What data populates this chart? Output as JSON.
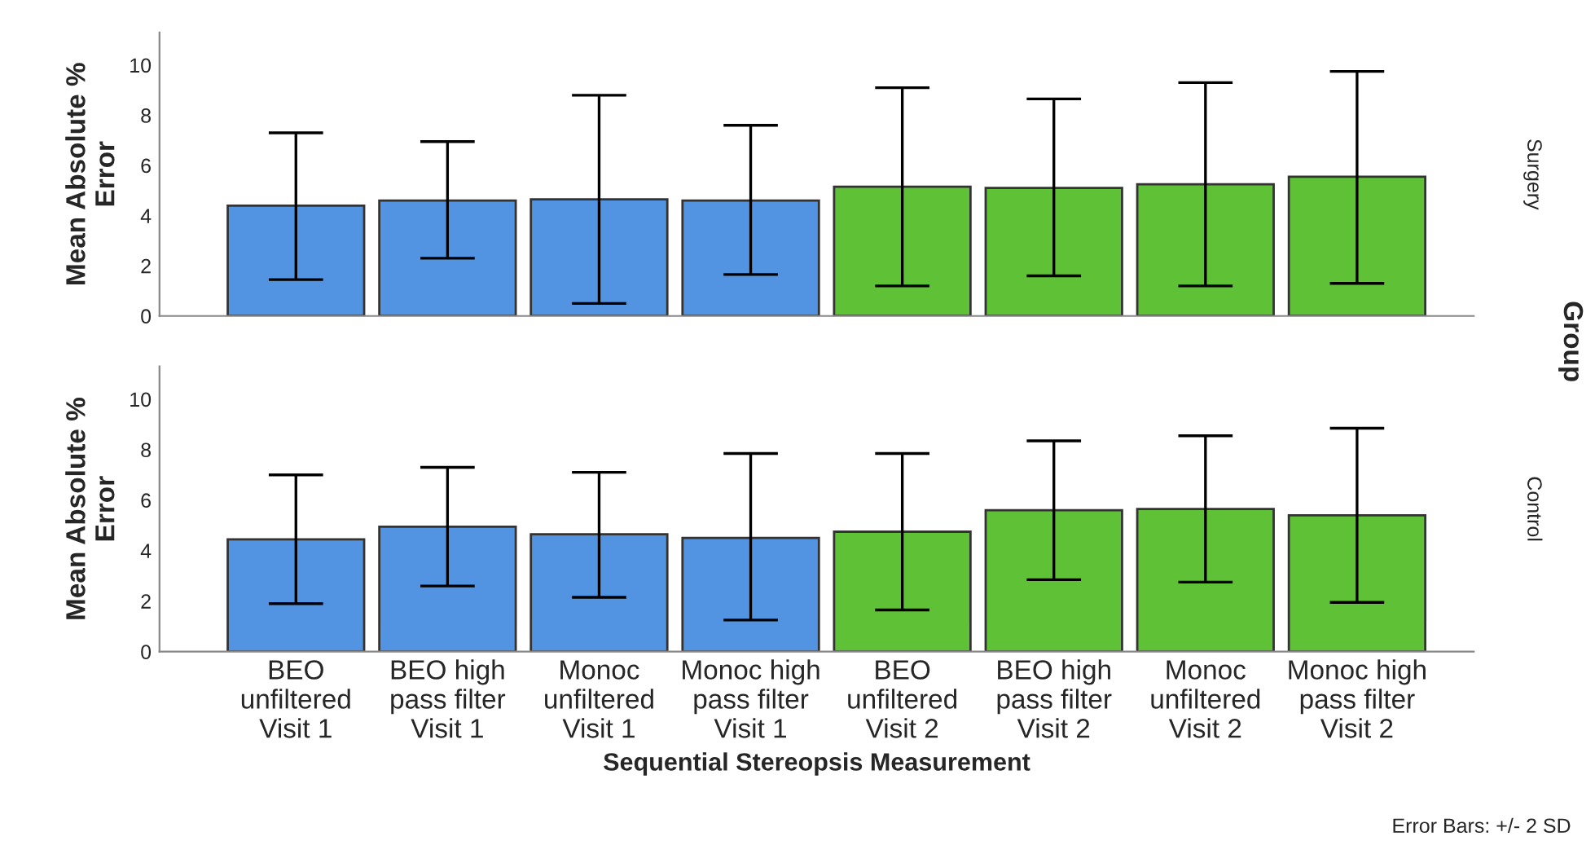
{
  "chart_data": [
    {
      "type": "bar",
      "ylabel": "Mean Absolute % Error",
      "y2label": "Surgery",
      "annotations": [
        "Group"
      ],
      "categories": [
        null,
        null,
        null,
        null,
        null,
        null,
        null,
        null
      ],
      "values": [
        4.4,
        4.6,
        4.65,
        4.6,
        5.15,
        5.1,
        5.25,
        5.55
      ],
      "errors": [
        [
          1.45,
          7.3
        ],
        [
          2.3,
          6.95
        ],
        [
          0.5,
          8.8
        ],
        [
          1.65,
          7.6
        ],
        [
          1.2,
          9.1
        ],
        [
          1.6,
          8.65
        ],
        [
          1.2,
          9.3
        ],
        [
          1.3,
          9.75
        ]
      ],
      "colors": [
        "#5294e2",
        "#5294e2",
        "#5294e2",
        "#5294e2",
        "#5fc136",
        "#5fc136",
        "#5fc136",
        "#5fc136"
      ],
      "ylim": [
        0,
        11.3
      ],
      "yticks": [
        0,
        2,
        4,
        6,
        8,
        10
      ],
      "grid": false,
      "tick_labels": "y"
    },
    {
      "type": "bar",
      "ylabel": "Mean Absolute % Error",
      "y2label": "Control",
      "xlabel": "Sequential Stereopsis Measurement",
      "annotations": [
        "Error Bars: +/- 2 SD"
      ],
      "categories": [
        "BEO unfiltered Visit 1",
        "BEO high pass filter Visit 1",
        "Monoc unfiltered Visit 1",
        "Monoc high pass filter Visit 1",
        "BEO unfiltered Visit 2",
        "BEO high pass filter Visit 2",
        "Monoc unfiltered Visit 2",
        "Monoc high pass filter Visit 2"
      ],
      "values": [
        4.45,
        4.95,
        4.65,
        4.5,
        4.75,
        5.6,
        5.65,
        5.4
      ],
      "errors": [
        [
          1.9,
          7.0
        ],
        [
          2.6,
          7.3
        ],
        [
          2.15,
          7.1
        ],
        [
          1.25,
          7.85
        ],
        [
          1.65,
          7.85
        ],
        [
          2.85,
          8.35
        ],
        [
          2.75,
          8.55
        ],
        [
          1.95,
          8.85
        ]
      ],
      "colors": [
        "#5294e2",
        "#5294e2",
        "#5294e2",
        "#5294e2",
        "#5fc136",
        "#5fc136",
        "#5fc136",
        "#5fc136"
      ],
      "ylim": [
        0,
        11.3
      ],
      "yticks": [
        0,
        2,
        4,
        6,
        8,
        10
      ],
      "grid": false
    }
  ]
}
